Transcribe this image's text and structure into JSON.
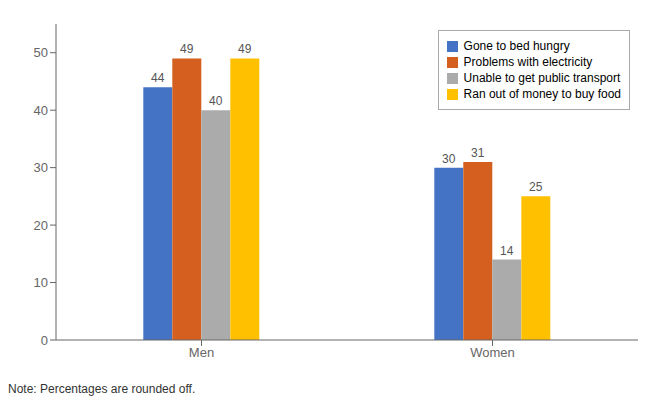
{
  "chart_data": {
    "type": "bar",
    "categories": [
      "Men",
      "Women"
    ],
    "series": [
      {
        "name": "Gone to bed hungry",
        "color": "#4472C4",
        "values": [
          44,
          30
        ]
      },
      {
        "name": "Problems with electricity",
        "color": "#D45F1E",
        "values": [
          49,
          31
        ]
      },
      {
        "name": "Unable to get public transport",
        "color": "#ABABAB",
        "values": [
          40,
          14
        ]
      },
      {
        "name": "Ran out of money to buy food",
        "color": "#FFC000",
        "values": [
          49,
          25
        ]
      }
    ],
    "ylim": [
      0,
      55
    ],
    "yticks": [
      0,
      10,
      20,
      30,
      40,
      50
    ],
    "grid": false,
    "legend": "upper right",
    "data_labels": true,
    "annotations": [
      "Note: Percentages are rounded off."
    ]
  }
}
